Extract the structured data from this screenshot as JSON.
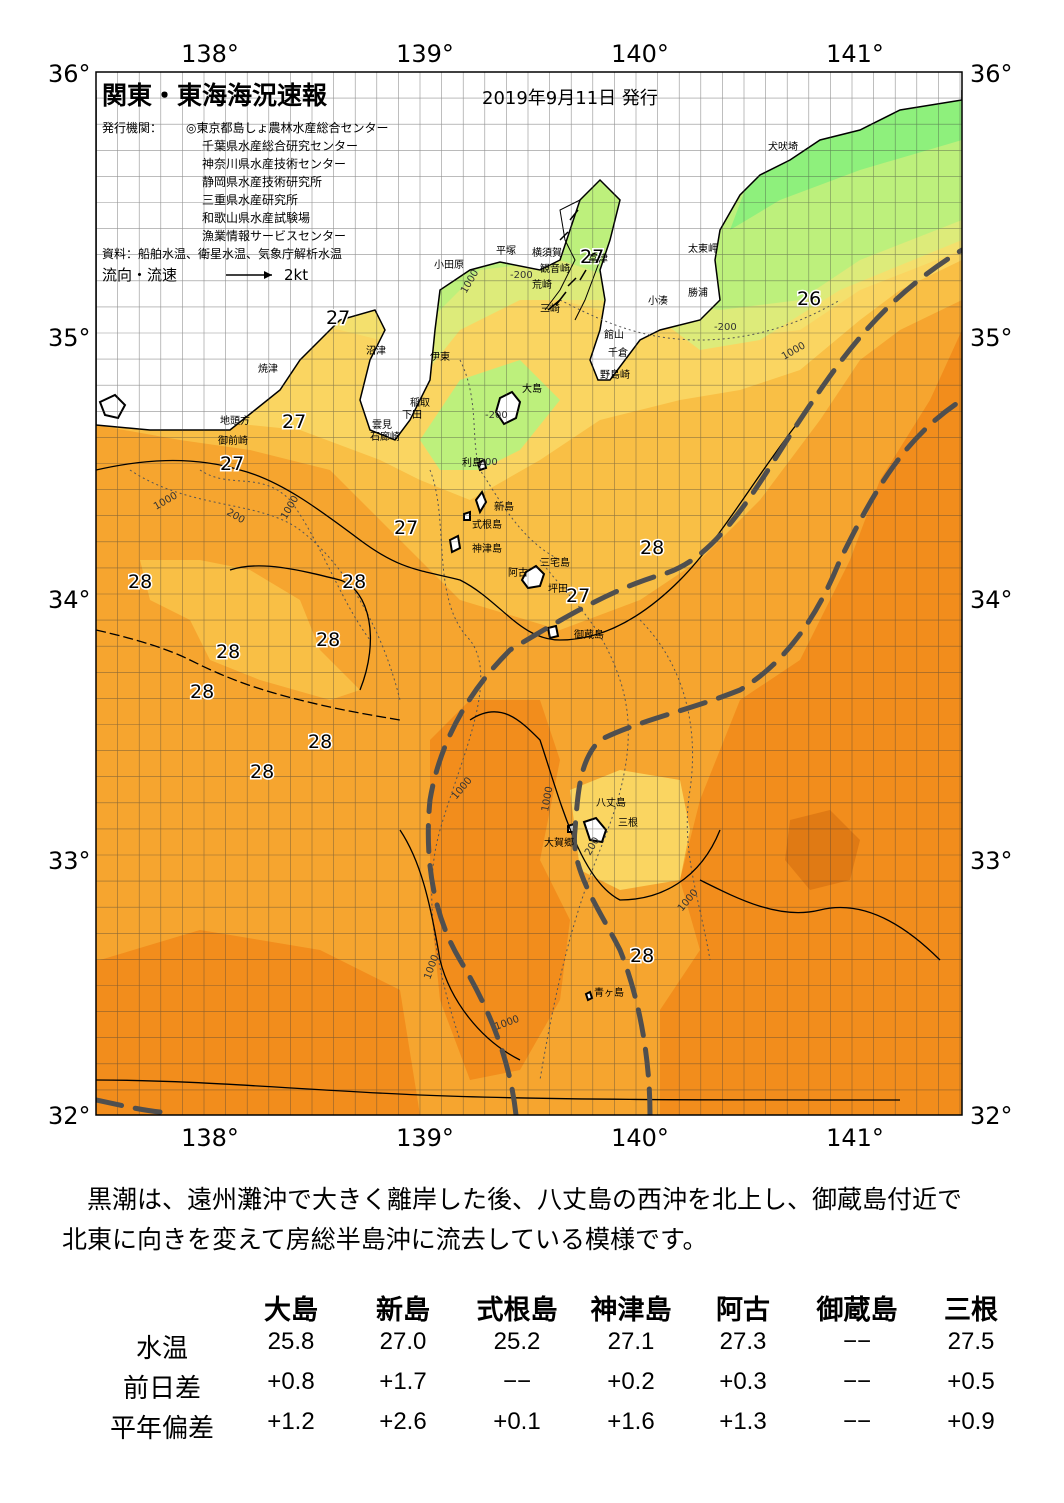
{
  "map": {
    "title": "関東・東海海況速報",
    "issue_date": "2019年9月11日 発行",
    "issuers_label": "発行機関：",
    "issuers": [
      "◎東京都島しょ農林水産総合センター",
      "千葉県水産総合研究センター",
      "神奈川県水産技術センター",
      "静岡県水産技術研究所",
      "三重県水産研究所",
      "和歌山県水産試験場",
      "漁業情報サービスセンター"
    ],
    "sources": "資料：船舶水温、衛星水温、気象庁解析水温",
    "current_label": "流向・流速",
    "current_scale": "2kt",
    "lon_labels": [
      "138°",
      "139°",
      "140°",
      "141°"
    ],
    "lat_labels": [
      "36°",
      "35°",
      "34°",
      "33°",
      "32°"
    ],
    "temp_labels": [
      "27",
      "27",
      "27",
      "27",
      "27",
      "27",
      "26",
      "28",
      "28",
      "28",
      "28",
      "28",
      "28",
      "28",
      "28",
      "28",
      "28"
    ],
    "depth_labels": [
      "-200",
      "-200",
      "-200",
      "-200",
      "1000",
      "1000",
      "1000",
      "1000",
      "1000",
      "1000",
      "1000",
      "1000",
      "1000",
      "200",
      "200"
    ],
    "places": [
      "犬吠埼",
      "太東岬",
      "勝浦",
      "小湊",
      "館山",
      "千倉",
      "野島崎",
      "富津",
      "観音崎",
      "横須賀",
      "荒崎",
      "三崎",
      "平塚",
      "小田原",
      "沼津",
      "焼津",
      "伊東",
      "稲取",
      "下田",
      "雲見",
      "石廊崎",
      "地頭方",
      "御前崎",
      "大島",
      "利島",
      "新島",
      "式根島",
      "神津島",
      "三宅島",
      "阿古",
      "坪田",
      "御蔵島",
      "八丈島",
      "三根",
      "大賀郷",
      "青ヶ島"
    ],
    "colors": {
      "warm_orange": "#f28d1c",
      "mid_orange": "#f6a52f",
      "light_orange": "#f9bf45",
      "yellow": "#fad561",
      "light_yellow": "#f4e06d",
      "yellow_green": "#ddeb7a",
      "light_green": "#bdf07c",
      "green": "#8ef07c",
      "kuroshio_line": "#4f4f4f"
    }
  },
  "description": "　黒潮は、遠州灘沖で大きく離岸した後、八丈島の西沖を北上し、御蔵島付近で\n北東に向きを変えて房総半島沖に流去している模様です。",
  "table": {
    "columns": [
      "大島",
      "新島",
      "式根島",
      "神津島",
      "阿古",
      "御蔵島",
      "三根"
    ],
    "rows": [
      {
        "label": "水温",
        "values": [
          "25.8",
          "27.0",
          "25.2",
          "27.1",
          "27.3",
          "−−",
          "27.5"
        ]
      },
      {
        "label": "前日差",
        "values": [
          "+0.8",
          "+1.7",
          "−−",
          "+0.2",
          "+0.3",
          "−−",
          "+0.5"
        ]
      },
      {
        "label": "平年偏差",
        "values": [
          "+1.2",
          "+2.6",
          "+0.1",
          "+1.6",
          "+1.3",
          "−−",
          "+0.9"
        ]
      }
    ]
  }
}
